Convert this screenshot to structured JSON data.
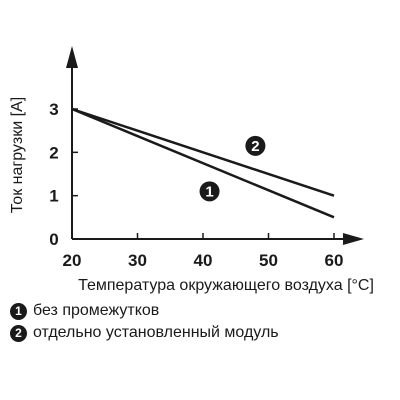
{
  "chart_data": {
    "type": "line",
    "xlabel": "Температура окружающего воздуха [°C]",
    "ylabel": "Ток нагрузки [A]",
    "xlim": [
      20,
      60
    ],
    "ylim": [
      0,
      3
    ],
    "xticks": [
      "20",
      "30",
      "40",
      "50",
      "60"
    ],
    "yticks": [
      "0",
      "1",
      "2",
      "3"
    ],
    "grid": false,
    "series": [
      {
        "marker": "1",
        "x": [
          20,
          60
        ],
        "y": [
          3,
          0.5
        ],
        "label_at": {
          "x": 41,
          "y": 1.1
        }
      },
      {
        "marker": "2",
        "x": [
          20,
          60
        ],
        "y": [
          3,
          1.0
        ],
        "label_at": {
          "x": 48,
          "y": 2.15
        }
      }
    ],
    "series_color": "#1a1a1a"
  },
  "legend": [
    {
      "marker": "1",
      "text": "без промежутков"
    },
    {
      "marker": "2",
      "text": "отдельно установленный модуль"
    }
  ]
}
